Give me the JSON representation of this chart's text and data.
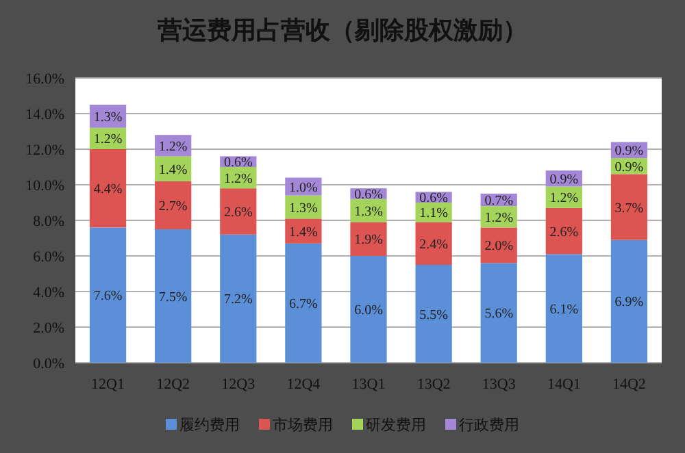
{
  "chart_data": {
    "type": "bar",
    "title": "营运费用占营收（剔除股权激励）",
    "stacked": true,
    "grid": "y",
    "legend": "bottom",
    "categories": [
      "12Q1",
      "12Q2",
      "12Q3",
      "12Q4",
      "13Q1",
      "13Q2",
      "13Q3",
      "14Q1",
      "14Q2"
    ],
    "ylim": [
      0,
      16
    ],
    "yticks": [
      {
        "value": 0,
        "label": "0.0%"
      },
      {
        "value": 2,
        "label": "2.0%"
      },
      {
        "value": 4,
        "label": "4.0%"
      },
      {
        "value": 6,
        "label": "6.0%"
      },
      {
        "value": 8,
        "label": "8.0%"
      },
      {
        "value": 10,
        "label": "10.0%"
      },
      {
        "value": 12,
        "label": "12.0%"
      },
      {
        "value": 14,
        "label": "14.0%"
      },
      {
        "value": 16,
        "label": "16.0%"
      }
    ],
    "series": [
      {
        "name": "履约费用",
        "color": "#5b8fd8",
        "values": [
          7.6,
          7.5,
          7.2,
          6.7,
          6.0,
          5.5,
          5.6,
          6.1,
          6.9
        ],
        "value_labels": [
          "7.6%",
          "7.5%",
          "7.2%",
          "6.7%",
          "6.0%",
          "5.5%",
          "5.6%",
          "6.1%",
          "6.9%"
        ]
      },
      {
        "name": "市场费用",
        "color": "#dc5552",
        "values": [
          4.4,
          2.7,
          2.6,
          1.4,
          1.9,
          2.4,
          2.0,
          2.6,
          3.7
        ],
        "value_labels": [
          "4.4%",
          "2.7%",
          "2.6%",
          "1.4%",
          "1.9%",
          "2.4%",
          "2.0%",
          "2.6%",
          "3.7%"
        ]
      },
      {
        "name": "研发费用",
        "color": "#a5d45a",
        "values": [
          1.2,
          1.4,
          1.2,
          1.3,
          1.3,
          1.1,
          1.2,
          1.2,
          0.9
        ],
        "value_labels": [
          "1.2%",
          "1.4%",
          "1.2%",
          "1.3%",
          "1.3%",
          "1.1%",
          "1.2%",
          "1.2%",
          "0.9%"
        ]
      },
      {
        "name": "行政费用",
        "color": "#a487d6",
        "values": [
          1.3,
          1.2,
          0.6,
          1.0,
          0.6,
          0.6,
          0.7,
          0.9,
          0.9
        ],
        "value_labels": [
          "1.3%",
          "1.2%",
          "0.6%",
          "1.0%",
          "0.6%",
          "0.6%",
          "0.7%",
          "0.9%",
          "0.9%"
        ]
      }
    ]
  }
}
